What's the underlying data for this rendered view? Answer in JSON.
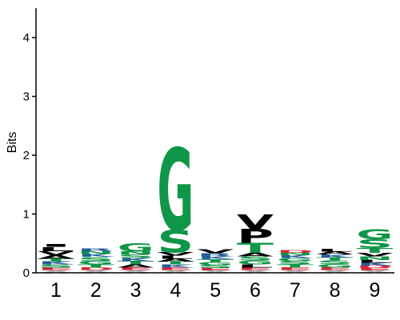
{
  "chart_data": {
    "type": "sequence-logo",
    "title": "",
    "xlabel": "",
    "ylabel": "Bits",
    "ylim": [
      0,
      4.5
    ],
    "y_ticks": [
      "0",
      "1",
      "2",
      "3",
      "4"
    ],
    "positions": [
      "1",
      "2",
      "3",
      "4",
      "5",
      "6",
      "7",
      "8",
      "9"
    ],
    "colors": {
      "hydrophobic": "#000000",
      "polar": "#109648",
      "basic": "#255c99",
      "acidic": "#d62839",
      "other": "#b0b0b0"
    },
    "columns": [
      {
        "position": "1",
        "stack": [
          {
            "letter": "X",
            "height": 0.05,
            "color": "other"
          },
          {
            "letter": "E",
            "height": 0.04,
            "color": "acidic"
          },
          {
            "letter": "S",
            "height": 0.05,
            "color": "polar"
          },
          {
            "letter": "K",
            "height": 0.05,
            "color": "basic"
          },
          {
            "letter": "T",
            "height": 0.05,
            "color": "polar"
          },
          {
            "letter": "A",
            "height": 0.06,
            "color": "hydrophobic"
          },
          {
            "letter": "V",
            "height": 0.07,
            "color": "hydrophobic"
          },
          {
            "letter": "L",
            "height": 0.07,
            "color": "hydrophobic"
          },
          {
            "letter": "I",
            "height": 0.04,
            "color": "hydrophobic"
          }
        ]
      },
      {
        "position": "2",
        "stack": [
          {
            "letter": "X",
            "height": 0.05,
            "color": "other"
          },
          {
            "letter": "D",
            "height": 0.04,
            "color": "acidic"
          },
          {
            "letter": "T",
            "height": 0.05,
            "color": "polar"
          },
          {
            "letter": "G",
            "height": 0.06,
            "color": "polar"
          },
          {
            "letter": "S",
            "height": 0.07,
            "color": "polar"
          },
          {
            "letter": "K",
            "height": 0.05,
            "color": "basic"
          },
          {
            "letter": "N",
            "height": 0.05,
            "color": "polar"
          },
          {
            "letter": "R",
            "height": 0.04,
            "color": "basic"
          }
        ]
      },
      {
        "position": "3",
        "stack": [
          {
            "letter": "X",
            "height": 0.05,
            "color": "other"
          },
          {
            "letter": "E",
            "height": 0.04,
            "color": "acidic"
          },
          {
            "letter": "A",
            "height": 0.05,
            "color": "hydrophobic"
          },
          {
            "letter": "T",
            "height": 0.06,
            "color": "polar"
          },
          {
            "letter": "K",
            "height": 0.05,
            "color": "basic"
          },
          {
            "letter": "S",
            "height": 0.06,
            "color": "polar"
          },
          {
            "letter": "N",
            "height": 0.05,
            "color": "polar"
          },
          {
            "letter": "G",
            "height": 0.14,
            "color": "polar"
          }
        ]
      },
      {
        "position": "4",
        "stack": [
          {
            "letter": "X",
            "height": 0.05,
            "color": "other"
          },
          {
            "letter": "E",
            "height": 0.04,
            "color": "acidic"
          },
          {
            "letter": "K",
            "height": 0.05,
            "color": "basic"
          },
          {
            "letter": "T",
            "height": 0.05,
            "color": "polar"
          },
          {
            "letter": "A",
            "height": 0.05,
            "color": "hydrophobic"
          },
          {
            "letter": "L",
            "height": 0.05,
            "color": "hydrophobic"
          },
          {
            "letter": "V",
            "height": 0.06,
            "color": "hydrophobic"
          },
          {
            "letter": "S",
            "height": 0.38,
            "color": "polar"
          },
          {
            "letter": "G",
            "height": 1.4,
            "color": "polar"
          }
        ]
      },
      {
        "position": "5",
        "stack": [
          {
            "letter": "X",
            "height": 0.04,
            "color": "other"
          },
          {
            "letter": "E",
            "height": 0.04,
            "color": "acidic"
          },
          {
            "letter": "S",
            "height": 0.05,
            "color": "polar"
          },
          {
            "letter": "G",
            "height": 0.05,
            "color": "polar"
          },
          {
            "letter": "T",
            "height": 0.05,
            "color": "polar"
          },
          {
            "letter": "K",
            "height": 0.05,
            "color": "basic"
          },
          {
            "letter": "R",
            "height": 0.05,
            "color": "basic"
          },
          {
            "letter": "V",
            "height": 0.07,
            "color": "hydrophobic"
          }
        ]
      },
      {
        "position": "6",
        "stack": [
          {
            "letter": "X",
            "height": 0.05,
            "color": "other"
          },
          {
            "letter": "E",
            "height": 0.04,
            "color": "acidic"
          },
          {
            "letter": "L",
            "height": 0.05,
            "color": "hydrophobic"
          },
          {
            "letter": "G",
            "height": 0.07,
            "color": "polar"
          },
          {
            "letter": "S",
            "height": 0.07,
            "color": "polar"
          },
          {
            "letter": "A",
            "height": 0.06,
            "color": "hydrophobic"
          },
          {
            "letter": "T",
            "height": 0.17,
            "color": "polar"
          },
          {
            "letter": "P",
            "height": 0.24,
            "color": "hydrophobic"
          },
          {
            "letter": "V",
            "height": 0.25,
            "color": "hydrophobic"
          }
        ]
      },
      {
        "position": "7",
        "stack": [
          {
            "letter": "X",
            "height": 0.05,
            "color": "other"
          },
          {
            "letter": "E",
            "height": 0.04,
            "color": "acidic"
          },
          {
            "letter": "T",
            "height": 0.05,
            "color": "polar"
          },
          {
            "letter": "S",
            "height": 0.06,
            "color": "polar"
          },
          {
            "letter": "G",
            "height": 0.05,
            "color": "polar"
          },
          {
            "letter": "K",
            "height": 0.05,
            "color": "basic"
          },
          {
            "letter": "N",
            "height": 0.04,
            "color": "polar"
          },
          {
            "letter": "D",
            "height": 0.04,
            "color": "acidic"
          }
        ]
      },
      {
        "position": "8",
        "stack": [
          {
            "letter": "X",
            "height": 0.05,
            "color": "other"
          },
          {
            "letter": "E",
            "height": 0.04,
            "color": "acidic"
          },
          {
            "letter": "G",
            "height": 0.06,
            "color": "polar"
          },
          {
            "letter": "S",
            "height": 0.06,
            "color": "polar"
          },
          {
            "letter": "T",
            "height": 0.05,
            "color": "polar"
          },
          {
            "letter": "K",
            "height": 0.05,
            "color": "basic"
          },
          {
            "letter": "A",
            "height": 0.05,
            "color": "hydrophobic"
          },
          {
            "letter": "L",
            "height": 0.04,
            "color": "hydrophobic"
          }
        ]
      },
      {
        "position": "9",
        "stack": [
          {
            "letter": "X",
            "height": 0.04,
            "color": "other"
          },
          {
            "letter": "E",
            "height": 0.04,
            "color": "acidic"
          },
          {
            "letter": "D",
            "height": 0.04,
            "color": "acidic"
          },
          {
            "letter": "K",
            "height": 0.05,
            "color": "basic"
          },
          {
            "letter": "L",
            "height": 0.05,
            "color": "hydrophobic"
          },
          {
            "letter": "N",
            "height": 0.06,
            "color": "polar"
          },
          {
            "letter": "V",
            "height": 0.06,
            "color": "hydrophobic"
          },
          {
            "letter": "T",
            "height": 0.08,
            "color": "polar"
          },
          {
            "letter": "S",
            "height": 0.15,
            "color": "polar"
          },
          {
            "letter": "G",
            "height": 0.17,
            "color": "polar"
          }
        ]
      }
    ]
  }
}
